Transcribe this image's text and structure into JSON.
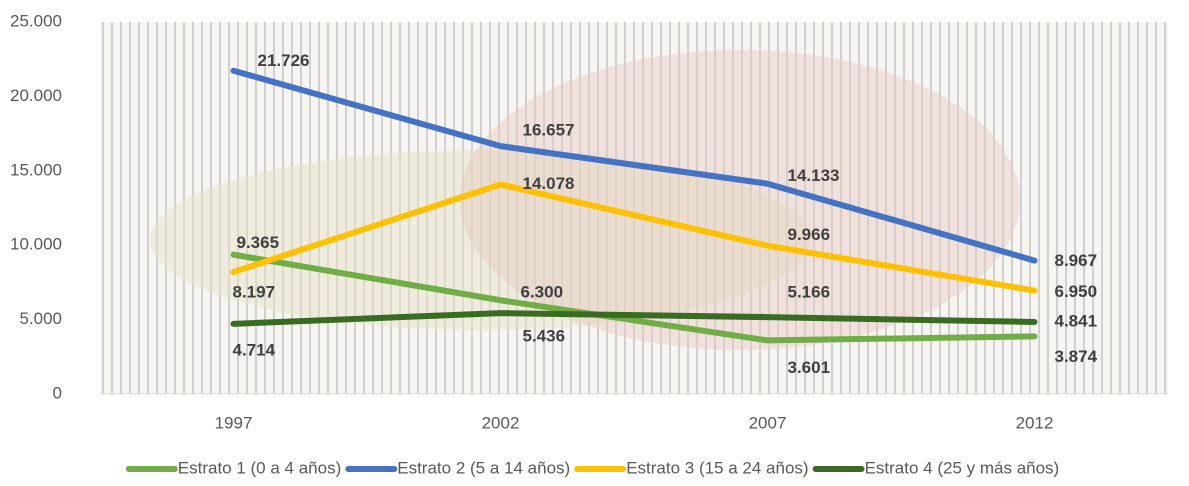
{
  "chart_data": {
    "type": "line",
    "categories": [
      "1997",
      "2002",
      "2007",
      "2012"
    ],
    "series": [
      {
        "name": "Estrato 1 (0 a 4 años)",
        "color": "#70ad47",
        "values": [
          9365,
          6300,
          3601,
          3874
        ],
        "value_labels": [
          "9.365",
          "6.300",
          "3.601",
          "3.874"
        ]
      },
      {
        "name": "Estrato 2 (5 a 14 años)",
        "color": "#4472c4",
        "values": [
          21726,
          16657,
          14133,
          8967
        ],
        "value_labels": [
          "21.726",
          "16.657",
          "14.133",
          "8.967"
        ]
      },
      {
        "name": "Estrato 3 (15 a 24 años)",
        "color": "#ffc000",
        "values": [
          8197,
          14078,
          9966,
          6950
        ],
        "value_labels": [
          "8.197",
          "14.078",
          "9.966",
          "6.950"
        ]
      },
      {
        "name": "Estrato 4 (25 y más años)",
        "color": "#3a6b22",
        "values": [
          4714,
          5436,
          5166,
          4841
        ],
        "value_labels": [
          "4.714",
          "5.436",
          "5.166",
          "4.841"
        ]
      }
    ],
    "ylim": [
      0,
      25000
    ],
    "yticks": [
      0,
      {
        "value": 5000,
        "label": "5.000"
      },
      {
        "value": 10000,
        "label": "10.000"
      },
      {
        "value": 15000,
        "label": "15.000"
      },
      {
        "value": 20000,
        "label": "20.000"
      },
      {
        "value": 25000,
        "label": "25.000"
      }
    ],
    "grid": false,
    "legend": "bottom"
  }
}
